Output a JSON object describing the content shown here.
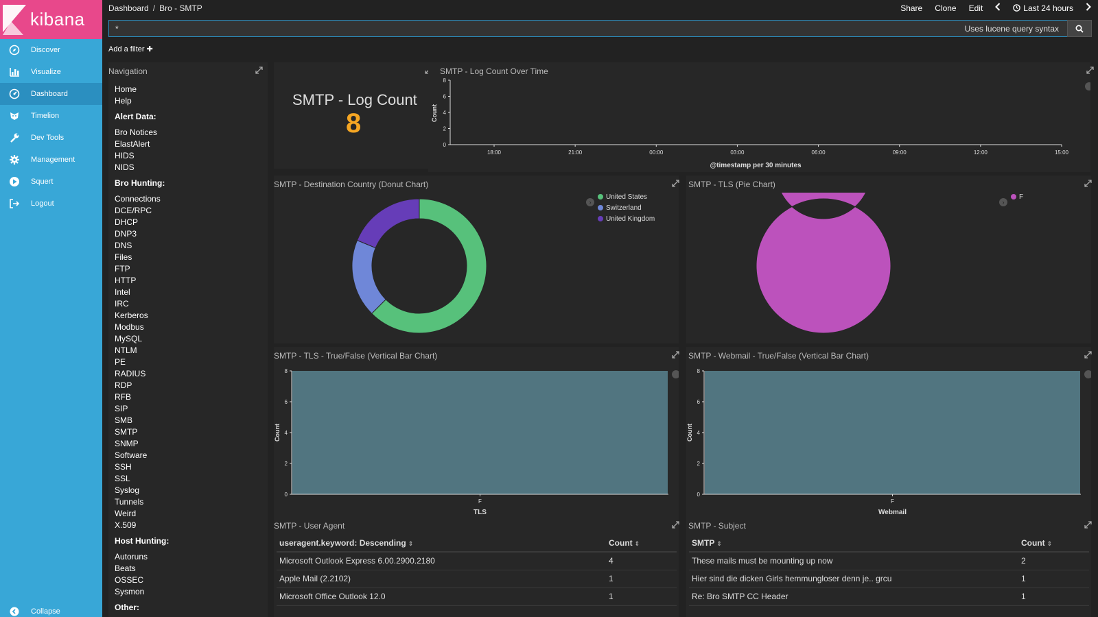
{
  "app": {
    "brand": "kibana"
  },
  "sidebar": {
    "items": [
      {
        "label": "Discover",
        "icon": "compass-icon"
      },
      {
        "label": "Visualize",
        "icon": "bar-chart-icon"
      },
      {
        "label": "Dashboard",
        "icon": "dashboard-icon",
        "active": true
      },
      {
        "label": "Timelion",
        "icon": "timelion-icon"
      },
      {
        "label": "Dev Tools",
        "icon": "wrench-icon"
      },
      {
        "label": "Management",
        "icon": "gear-icon"
      },
      {
        "label": "Squert",
        "icon": "play-icon"
      },
      {
        "label": "Logout",
        "icon": "logout-icon"
      }
    ],
    "collapse_label": "Collapse"
  },
  "header": {
    "breadcrumb_root": "Dashboard",
    "breadcrumb_sep": "/",
    "breadcrumb_current": "Bro - SMTP",
    "share": "Share",
    "clone": "Clone",
    "edit": "Edit",
    "time_range": "Last 24 hours"
  },
  "query": {
    "value": "*",
    "hint": "Uses lucene query syntax",
    "add_filter": "Add a filter"
  },
  "navigation": {
    "title": "Navigation",
    "top_links": [
      "Home",
      "Help"
    ],
    "alert_heading": "Alert Data:",
    "alert_links": [
      "Bro Notices",
      "ElastAlert",
      "HIDS",
      "NIDS"
    ],
    "bro_heading": "Bro Hunting:",
    "bro_links": [
      "Connections",
      "DCE/RPC",
      "DHCP",
      "DNP3",
      "DNS",
      "Files",
      "FTP",
      "HTTP",
      "Intel",
      "IRC",
      "Kerberos",
      "Modbus",
      "MySQL",
      "NTLM",
      "PE",
      "RADIUS",
      "RDP",
      "RFB",
      "SIP",
      "SMB",
      "SMTP",
      "SNMP",
      "Software",
      "SSH",
      "SSL",
      "Syslog",
      "Tunnels",
      "Weird",
      "X.509"
    ],
    "host_heading": "Host Hunting:",
    "host_links": [
      "Autoruns",
      "Beats",
      "OSSEC",
      "Sysmon"
    ],
    "other_heading": "Other:"
  },
  "log_count": {
    "title": "SMTP - Log Count",
    "value": "8"
  },
  "chart_data": [
    {
      "id": "timeline",
      "type": "line",
      "title": "SMTP - Log Count Over Time",
      "xlabel": "@timestamp per 30 minutes",
      "ylabel": "Count",
      "x_ticks": [
        "18:00",
        "21:00",
        "00:00",
        "03:00",
        "06:00",
        "09:00",
        "12:00",
        "15:00"
      ],
      "y_ticks": [
        0,
        2,
        4,
        6,
        8
      ],
      "ylim": [
        0,
        8
      ],
      "values": []
    },
    {
      "id": "donut",
      "type": "pie",
      "title": "SMTP - Destination Country (Donut Chart)",
      "categories": [
        "United States",
        "Switzerland",
        "United Kingdom"
      ],
      "values": [
        5,
        1.5,
        1.5
      ],
      "colors": [
        "#57c17b",
        "#6f87d8",
        "#663db8"
      ]
    },
    {
      "id": "tls_pie",
      "type": "pie",
      "title": "SMTP - TLS (Pie Chart)",
      "categories": [
        "F"
      ],
      "values": [
        8
      ],
      "colors": [
        "#bc52bc"
      ]
    },
    {
      "id": "tls_bar",
      "type": "bar",
      "title": "SMTP - TLS - True/False (Vertical Bar Chart)",
      "xlabel": "TLS",
      "ylabel": "Count",
      "categories": [
        "F"
      ],
      "values": [
        8
      ],
      "y_ticks": [
        0,
        2,
        4,
        6,
        8
      ],
      "ylim": [
        0,
        8
      ],
      "color": "#517580"
    },
    {
      "id": "webmail_bar",
      "type": "bar",
      "title": "SMTP - Webmail - True/False (Vertical Bar Chart)",
      "xlabel": "Webmail",
      "ylabel": "Count",
      "categories": [
        "F"
      ],
      "values": [
        8
      ],
      "y_ticks": [
        0,
        2,
        4,
        6,
        8
      ],
      "ylim": [
        0,
        8
      ],
      "color": "#517580"
    }
  ],
  "user_agent": {
    "title": "SMTP - User Agent",
    "columns": [
      "useragent.keyword: Descending",
      "Count"
    ],
    "rows": [
      [
        "Microsoft Outlook Express 6.00.2900.2180",
        "4"
      ],
      [
        "Apple Mail (2.2102)",
        "1"
      ],
      [
        "Microsoft Office Outlook 12.0",
        "1"
      ]
    ]
  },
  "subject": {
    "title": "SMTP - Subject",
    "columns": [
      "SMTP",
      "Count"
    ],
    "rows": [
      [
        "These mails must be mounting up now",
        "2"
      ],
      [
        "Hier sind die dicken Girls hemmungloser denn je.. grcu",
        "1"
      ],
      [
        "Re: Bro SMTP CC Header",
        "1"
      ]
    ]
  }
}
